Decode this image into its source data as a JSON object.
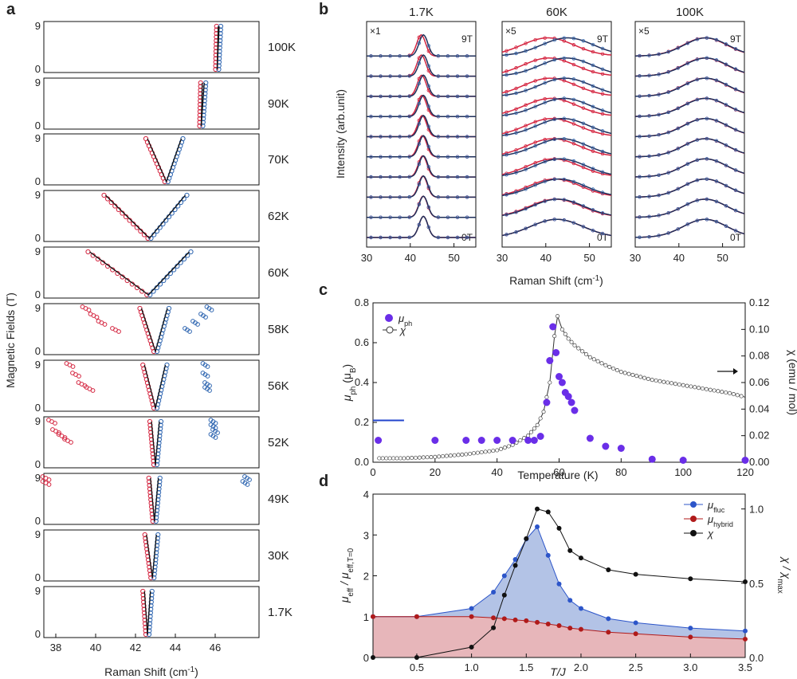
{
  "colors": {
    "red": "#d4243f",
    "blue": "#2f66b1",
    "dark": "#1f2f5a",
    "purple": "#6a2ee8",
    "fluc": "#2c55c9",
    "hybrid": "#b01a1a",
    "fillBlue": "#b3c3e6",
    "fillRed": "#e7b6ba"
  },
  "panels": {
    "a": "a",
    "b": "b",
    "c": "c",
    "d": "d"
  },
  "chart_data": [
    {
      "id": "a",
      "type": "scatter",
      "xlabel": "Raman Shift (cm",
      "xlabel_sup": "-1",
      "xlabel_end": ")",
      "ylabel": "Magnetic Fields (T)",
      "xticks": [
        "38",
        "40",
        "42",
        "44",
        "46"
      ],
      "yticks": [
        "0",
        "9"
      ],
      "xlim": [
        37.4,
        48.2
      ],
      "ylim": [
        0,
        9
      ],
      "temperatures": [
        "100K",
        "90K",
        "70K",
        "62K",
        "60K",
        "58K",
        "56K",
        "52K",
        "49K",
        "30K",
        "1.7K"
      ],
      "fit_lines": [
        {
          "red": [
            46.1,
            46.15
          ],
          "blue": [
            46.1,
            46.2
          ]
        },
        {
          "red": [
            45.3,
            45.35
          ],
          "blue": [
            45.3,
            45.45
          ]
        },
        {
          "red": [
            43.55,
            42.6
          ],
          "blue": [
            43.55,
            44.3
          ]
        },
        {
          "red": [
            42.7,
            40.5
          ],
          "blue": [
            42.7,
            44.5
          ]
        },
        {
          "red": [
            42.65,
            39.7
          ],
          "blue": [
            42.65,
            44.7
          ]
        },
        {
          "red": [
            43.0,
            42.3
          ],
          "blue": [
            43.0,
            43.6
          ]
        },
        {
          "red": [
            43.0,
            42.45
          ],
          "blue": [
            43.0,
            43.5
          ]
        },
        {
          "red": [
            43.0,
            42.8
          ],
          "blue": [
            43.0,
            43.2
          ]
        },
        {
          "red": [
            42.95,
            42.75
          ],
          "blue": [
            42.95,
            43.15
          ]
        },
        {
          "red": [
            42.85,
            42.55
          ],
          "blue": [
            42.85,
            43.05
          ]
        },
        {
          "red": [
            42.6,
            42.45
          ],
          "blue": [
            42.6,
            42.75
          ]
        }
      ],
      "outliers": [
        null,
        null,
        null,
        null,
        null,
        {
          "red": [
            [
              39.5,
              9
            ],
            [
              39.9,
              7.5
            ],
            [
              40.3,
              6
            ],
            [
              41.0,
              4.5
            ]
          ],
          "blue": [
            [
              44.6,
              4.5
            ],
            [
              45.0,
              6
            ],
            [
              45.4,
              7.5
            ],
            [
              45.7,
              9
            ]
          ]
        },
        {
          "red": [
            [
              38.7,
              9
            ],
            [
              39.0,
              7
            ],
            [
              39.3,
              5
            ],
            [
              39.7,
              4
            ]
          ],
          "blue": [
            [
              45.5,
              9
            ],
            [
              45.5,
              7
            ],
            [
              45.6,
              5
            ],
            [
              45.6,
              4
            ]
          ]
        },
        {
          "red": [
            [
              37.8,
              9
            ],
            [
              38.0,
              7
            ],
            [
              38.3,
              6
            ],
            [
              38.6,
              5
            ]
          ],
          "blue": [
            [
              45.9,
              9
            ],
            [
              45.9,
              8
            ],
            [
              46.0,
              7
            ],
            [
              45.9,
              6
            ]
          ]
        },
        {
          "red": [
            [
              37.5,
              9
            ],
            [
              37.5,
              8
            ]
          ],
          "blue": [
            [
              47.6,
              9
            ],
            [
              47.5,
              8
            ]
          ]
        },
        null,
        null
      ]
    },
    {
      "id": "b",
      "type": "line",
      "xlabel": "Raman Shift (cm",
      "xlabel_sup": "-1",
      "xlabel_end": ")",
      "ylabel": "Intensity (arb.unit)",
      "xticks": [
        "30",
        "40",
        "50"
      ],
      "xlim": [
        30,
        55
      ],
      "field_top": "9T",
      "field_bottom": "0T",
      "subpanels": [
        {
          "title": "1.7K",
          "scale": "×1",
          "peak_red": [
            42.5,
            43.0
          ],
          "peak_blue": [
            43.0,
            43.0
          ],
          "width": 1.0
        },
        {
          "title": "60K",
          "scale": "×5",
          "peak_red": [
            40.5,
            42.5
          ],
          "peak_blue": [
            45.0,
            42.5
          ],
          "width": 6.0
        },
        {
          "title": "100K",
          "scale": "×5",
          "peak_red": [
            46.0,
            46.0
          ],
          "peak_blue": [
            46.2,
            46.0
          ],
          "width": 5.0
        }
      ],
      "num_fields": 10
    },
    {
      "id": "c",
      "type": "scatter",
      "xlabel": "Temperature (K)",
      "ylabel": "μ",
      "ylabel_sub": "ph",
      "ylabel_end": " (μ",
      "ylabel_sub2": "B",
      "ylabel_end2": ")",
      "y2label": "χ (emu / mol)",
      "xlim": [
        0,
        120
      ],
      "ylim": [
        0,
        0.8
      ],
      "y2lim": [
        0,
        0.12
      ],
      "xticks": [
        "0",
        "20",
        "40",
        "60",
        "80",
        "100",
        "120"
      ],
      "yticks": [
        "0.0",
        "0.2",
        "0.4",
        "0.6",
        "0.8"
      ],
      "y2ticks": [
        "0.00",
        "0.02",
        "0.04",
        "0.06",
        "0.08",
        "0.10",
        "0.12"
      ],
      "legend": {
        "mu": "μ",
        "mu_sub": "ph",
        "chi": "χ"
      },
      "mu_ph": [
        [
          1.7,
          0.11
        ],
        [
          20,
          0.11
        ],
        [
          30,
          0.11
        ],
        [
          35,
          0.11
        ],
        [
          40,
          0.11
        ],
        [
          45,
          0.11
        ],
        [
          50,
          0.11
        ],
        [
          52,
          0.11
        ],
        [
          54,
          0.13
        ],
        [
          56,
          0.3
        ],
        [
          57,
          0.51
        ],
        [
          58,
          0.68
        ],
        [
          59,
          0.55
        ],
        [
          60,
          0.43
        ],
        [
          61,
          0.4
        ],
        [
          62,
          0.35
        ],
        [
          63,
          0.33
        ],
        [
          64,
          0.3
        ],
        [
          65,
          0.26
        ],
        [
          70,
          0.12
        ],
        [
          75,
          0.08
        ],
        [
          80,
          0.07
        ],
        [
          90,
          0.015
        ],
        [
          100,
          0.01
        ],
        [
          120,
          0.01
        ]
      ],
      "chi": [
        [
          2,
          0.003
        ],
        [
          10,
          0.003
        ],
        [
          20,
          0.004
        ],
        [
          30,
          0.006
        ],
        [
          40,
          0.009
        ],
        [
          45,
          0.013
        ],
        [
          50,
          0.02
        ],
        [
          53,
          0.028
        ],
        [
          55,
          0.038
        ],
        [
          57,
          0.06
        ],
        [
          58.5,
          0.095
        ],
        [
          59.5,
          0.11
        ],
        [
          61,
          0.1
        ],
        [
          63,
          0.093
        ],
        [
          65,
          0.088
        ],
        [
          70,
          0.079
        ],
        [
          75,
          0.073
        ],
        [
          80,
          0.068
        ],
        [
          85,
          0.065
        ],
        [
          90,
          0.062
        ],
        [
          95,
          0.06
        ],
        [
          100,
          0.058
        ],
        [
          105,
          0.056
        ],
        [
          110,
          0.054
        ],
        [
          115,
          0.052
        ],
        [
          120,
          0.049
        ]
      ]
    },
    {
      "id": "d",
      "type": "line",
      "xlabel": "T/J",
      "ylabel": "μ",
      "ylabel_sub": "eff",
      "ylabel_mid": " / μ",
      "ylabel_sub2": "eff,T=0",
      "y2label": "χ / χ",
      "y2label_sub": "max",
      "xlim": [
        0.1,
        3.5
      ],
      "ylim": [
        0,
        4
      ],
      "y2lim": [
        0,
        1.1
      ],
      "xticks": [
        "0.5",
        "1.0",
        "1.5",
        "2.0",
        "2.5",
        "3.0",
        "3.5"
      ],
      "yticks": [
        "0",
        "1",
        "2",
        "3",
        "4"
      ],
      "y2ticks": [
        "0.0",
        "0.5",
        "1.0"
      ],
      "legend": [
        {
          "name": "μ",
          "sub": "fluc"
        },
        {
          "name": "μ",
          "sub": "hybrid"
        },
        {
          "name": "χ",
          "sub": ""
        }
      ],
      "x": [
        0.1,
        0.5,
        1.0,
        1.2,
        1.3,
        1.4,
        1.5,
        1.6,
        1.7,
        1.8,
        1.9,
        2.0,
        2.25,
        2.5,
        3.0,
        3.5
      ],
      "fluc": [
        1.0,
        1.0,
        1.2,
        1.6,
        2.0,
        2.4,
        2.9,
        3.2,
        2.5,
        1.8,
        1.4,
        1.2,
        0.95,
        0.85,
        0.72,
        0.65
      ],
      "hybrid": [
        1.0,
        1.0,
        1.0,
        0.97,
        0.95,
        0.92,
        0.9,
        0.86,
        0.82,
        0.78,
        0.72,
        0.69,
        0.62,
        0.58,
        0.5,
        0.45
      ],
      "chi": [
        0.0,
        0.0,
        0.07,
        0.2,
        0.42,
        0.62,
        0.8,
        1.0,
        0.98,
        0.87,
        0.72,
        0.67,
        0.59,
        0.56,
        0.53,
        0.51
      ]
    }
  ]
}
